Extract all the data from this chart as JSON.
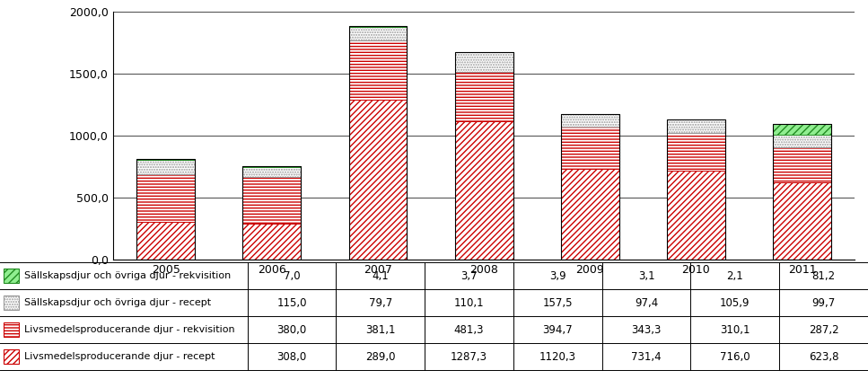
{
  "years": [
    "2005",
    "2006",
    "2007",
    "2008",
    "2009",
    "2010",
    "2011"
  ],
  "series": [
    {
      "label": "Sällskapsdjur och övriga djur - rekvisition",
      "values": [
        7.0,
        4.1,
        3.7,
        3.9,
        3.1,
        2.1,
        81.2
      ]
    },
    {
      "label": "Sällskapsdjur och övriga djur - recept",
      "values": [
        115.0,
        79.7,
        110.1,
        157.5,
        97.4,
        105.9,
        99.7
      ]
    },
    {
      "label": "Livsmedelsproducerande djur - rekvisition",
      "values": [
        380.0,
        381.1,
        481.3,
        394.7,
        343.3,
        310.1,
        287.2
      ]
    },
    {
      "label": "Livsmedelsproducerande djur - recept",
      "values": [
        308.0,
        289.0,
        1287.3,
        1120.3,
        731.4,
        716.0,
        623.8
      ]
    }
  ],
  "ylim": [
    0,
    2000
  ],
  "yticks": [
    0,
    500,
    1000,
    1500,
    2000
  ],
  "ytick_labels": [
    "0,0",
    "500,0",
    "1000,0",
    "1500,0",
    "2000,0"
  ],
  "table_rows": [
    [
      "7,0",
      "4,1",
      "3,7",
      "3,9",
      "3,1",
      "2,1",
      "81,2"
    ],
    [
      "115,0",
      "79,7",
      "110,1",
      "157,5",
      "97,4",
      "105,9",
      "99,7"
    ],
    [
      "380,0",
      "381,1",
      "481,3",
      "394,7",
      "343,3",
      "310,1",
      "287,2"
    ],
    [
      "308,0",
      "289,0",
      "1287,3",
      "1120,3",
      "731,4",
      "716,0",
      "623,8"
    ]
  ],
  "stack_colors": [
    "#ffffff",
    "#ffffff",
    "#ffffff",
    "#90EE90"
  ],
  "stack_hatches": [
    "/////",
    "-----",
    "......",
    "////"
  ],
  "stack_edges": [
    "#cc0000",
    "#cc0000",
    "#999999",
    "#228B22"
  ],
  "legend_colors": [
    "#90EE90",
    "#ffffff",
    "#ffffff",
    "#ffffff"
  ],
  "legend_hatches": [
    "////",
    "......",
    "-----",
    "/////"
  ],
  "legend_edges": [
    "#228B22",
    "#999999",
    "#cc0000",
    "#cc0000"
  ]
}
